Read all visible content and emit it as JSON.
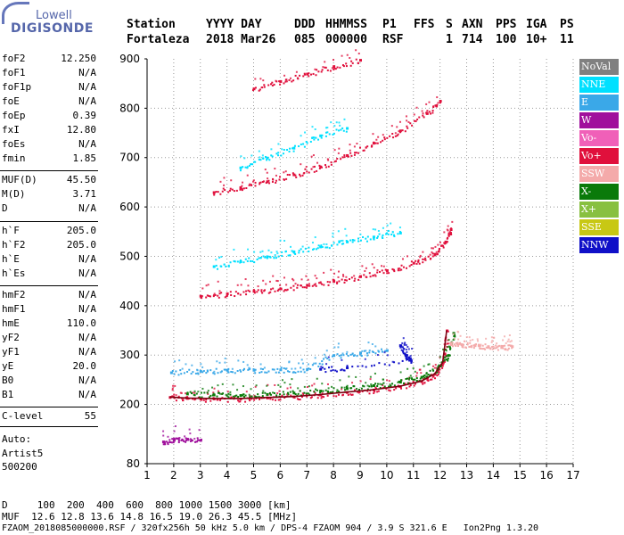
{
  "logo": {
    "top": "Lowell",
    "bottom": "DIGISONDE"
  },
  "header": {
    "row1": {
      "station": "Station",
      "date": "YYYY DAY",
      "ddd": "DDD",
      "time": "HHMMSS",
      "p1": "P1",
      "ffs": "FFS",
      "s": "S",
      "axn": "AXN",
      "pps": "PPS",
      "iga": "IGA",
      "ps": "PS"
    },
    "row2": {
      "station": "Fortaleza",
      "date": "2018 Mar26",
      "ddd": "085",
      "time": "000000",
      "p1": "RSF",
      "ffs": "",
      "s": "1",
      "axn": "714",
      "pps": "100",
      "iga": "10+",
      "ps": "11"
    }
  },
  "params_group1": [
    {
      "name": "foF2",
      "value": "12.250"
    },
    {
      "name": "foF1",
      "value": "N/A"
    },
    {
      "name": "foF1p",
      "value": "N/A"
    },
    {
      "name": "foE",
      "value": "N/A"
    },
    {
      "name": "foEp",
      "value": "0.39"
    },
    {
      "name": "fxI",
      "value": "12.80"
    },
    {
      "name": "foEs",
      "value": "N/A"
    },
    {
      "name": "fmin",
      "value": "1.85"
    }
  ],
  "params_group2": [
    {
      "name": "MUF(D)",
      "value": "45.50"
    },
    {
      "name": "M(D)",
      "value": "3.71"
    },
    {
      "name": "D",
      "value": "N/A"
    }
  ],
  "params_group3": [
    {
      "name": "h`F",
      "value": "205.0"
    },
    {
      "name": "h`F2",
      "value": "205.0"
    },
    {
      "name": "h`E",
      "value": "N/A"
    },
    {
      "name": "h`Es",
      "value": "N/A"
    }
  ],
  "params_group4": [
    {
      "name": "hmF2",
      "value": "N/A"
    },
    {
      "name": "hmF1",
      "value": "N/A"
    },
    {
      "name": "hmE",
      "value": "110.0"
    },
    {
      "name": "yF2",
      "value": "N/A"
    },
    {
      "name": "yF1",
      "value": "N/A"
    },
    {
      "name": "yE",
      "value": "20.0"
    },
    {
      "name": "B0",
      "value": "N/A"
    },
    {
      "name": "B1",
      "value": "N/A"
    }
  ],
  "params_group5": [
    {
      "name": "C-level",
      "value": "55"
    }
  ],
  "auto": {
    "line1": "Auto:",
    "line2": "Artist5",
    "line3": "500200"
  },
  "legend": [
    {
      "label": "NoVal",
      "color": "#808080"
    },
    {
      "label": "NNE",
      "color": "#00e0ff"
    },
    {
      "label": "E",
      "color": "#3aa8e8"
    },
    {
      "label": "W",
      "color": "#a0109c"
    },
    {
      "label": "Vo-",
      "color": "#f060b8"
    },
    {
      "label": "Vo+",
      "color": "#e0103c"
    },
    {
      "label": "SSW",
      "color": "#f4aaaa"
    },
    {
      "label": "X-",
      "color": "#0a7a0a"
    },
    {
      "label": "X+",
      "color": "#88c040"
    },
    {
      "label": "SSE",
      "color": "#c8c814"
    },
    {
      "label": "NNW",
      "color": "#1010c8"
    }
  ],
  "footer": {
    "d_row": "D     100  200  400  600  800 1000 1500 3000 [km]",
    "muf_row": "MUF  12.6 12.8 13.6 14.8 16.5 19.0 26.3 45.5 [MHz]",
    "file_row": "FZAOM_2018085000000.RSF / 320fx256h 50 kHz 5.0 km / DPS-4 FZAOM 904 / 3.9 S 321.6 E   Ion2Png 1.3.20"
  },
  "chart_data": {
    "type": "scatter",
    "x_ticks": [
      "1",
      "2",
      "3",
      "4",
      "5",
      "6",
      "7",
      "8",
      "9",
      "10",
      "11",
      "12",
      "13",
      "14",
      "15",
      "16",
      "17"
    ],
    "y_ticks": [
      "80",
      "200",
      "300",
      "400",
      "500",
      "600",
      "700",
      "800",
      "900"
    ],
    "xlim": [
      1,
      17
    ],
    "ylim": [
      80,
      900
    ],
    "series": [
      {
        "name": "Vo+",
        "values": [
          [
            1.85,
            215
          ],
          [
            2.5,
            213
          ],
          [
            3.5,
            212
          ],
          [
            4.5,
            212
          ],
          [
            5.5,
            214
          ],
          [
            6.5,
            216
          ],
          [
            7.5,
            220
          ],
          [
            8.5,
            225
          ],
          [
            9.5,
            230
          ],
          [
            10.5,
            237
          ],
          [
            11.3,
            247
          ],
          [
            11.8,
            262
          ],
          [
            12.1,
            285
          ],
          [
            12.25,
            350
          ]
        ]
      },
      {
        "name": "X-",
        "values": [
          [
            2.5,
            222
          ],
          [
            3.5,
            220
          ],
          [
            4.5,
            219
          ],
          [
            5.5,
            221
          ],
          [
            6.5,
            224
          ],
          [
            7.5,
            228
          ],
          [
            8.5,
            233
          ],
          [
            9.5,
            239
          ],
          [
            10.5,
            246
          ],
          [
            11.3,
            256
          ],
          [
            11.9,
            272
          ],
          [
            12.3,
            300
          ],
          [
            12.5,
            345
          ]
        ]
      },
      {
        "name": "E",
        "values": [
          [
            1.9,
            265
          ],
          [
            3.0,
            268
          ],
          [
            4.0,
            270
          ],
          [
            5.0,
            270
          ],
          [
            6.0,
            271
          ],
          [
            7.0,
            272
          ],
          [
            8.0,
            300
          ],
          [
            9.0,
            305
          ],
          [
            10.0,
            310
          ]
        ]
      },
      {
        "name": "SSW",
        "values": [
          [
            12.4,
            325
          ],
          [
            12.8,
            322
          ],
          [
            13.3,
            320
          ],
          [
            13.8,
            318
          ],
          [
            14.3,
            316
          ],
          [
            14.7,
            318
          ]
        ]
      },
      {
        "name": "NNW",
        "values": [
          [
            10.5,
            320
          ],
          [
            10.7,
            300
          ],
          [
            10.9,
            290
          ],
          [
            8.5,
            275
          ],
          [
            7.5,
            272
          ]
        ]
      },
      {
        "name": "Vo+",
        "values": [
          [
            3.0,
            420
          ],
          [
            4.0,
            425
          ],
          [
            5.0,
            430
          ],
          [
            6.0,
            435
          ],
          [
            7.0,
            442
          ],
          [
            8.0,
            450
          ],
          [
            9.0,
            460
          ],
          [
            10.0,
            472
          ],
          [
            11.0,
            487
          ],
          [
            11.8,
            505
          ],
          [
            12.2,
            530
          ],
          [
            12.4,
            555
          ]
        ]
      },
      {
        "name": "NNE",
        "values": [
          [
            3.5,
            480
          ],
          [
            4.5,
            490
          ],
          [
            5.5,
            500
          ],
          [
            6.5,
            510
          ],
          [
            7.5,
            520
          ],
          [
            8.5,
            530
          ],
          [
            9.5,
            540
          ],
          [
            10.5,
            548
          ]
        ]
      },
      {
        "name": "Vo+",
        "values": [
          [
            3.5,
            630
          ],
          [
            4.5,
            640
          ],
          [
            5.5,
            652
          ],
          [
            6.5,
            666
          ],
          [
            7.5,
            682
          ],
          [
            8.5,
            705
          ],
          [
            9.5,
            730
          ],
          [
            10.5,
            755
          ],
          [
            11.5,
            790
          ],
          [
            12.0,
            815
          ]
        ]
      },
      {
        "name": "NNE",
        "values": [
          [
            4.5,
            680
          ],
          [
            5.5,
            700
          ],
          [
            6.5,
            720
          ],
          [
            7.5,
            745
          ],
          [
            8.5,
            760
          ]
        ]
      },
      {
        "name": "Vo+",
        "values": [
          [
            5.0,
            840
          ],
          [
            6.0,
            855
          ],
          [
            7.0,
            870
          ],
          [
            8.0,
            885
          ],
          [
            9.0,
            898
          ]
        ]
      },
      {
        "name": "W",
        "values": [
          [
            1.6,
            125
          ],
          [
            2.0,
            128
          ],
          [
            2.5,
            130
          ],
          [
            3.0,
            128
          ]
        ]
      }
    ]
  }
}
